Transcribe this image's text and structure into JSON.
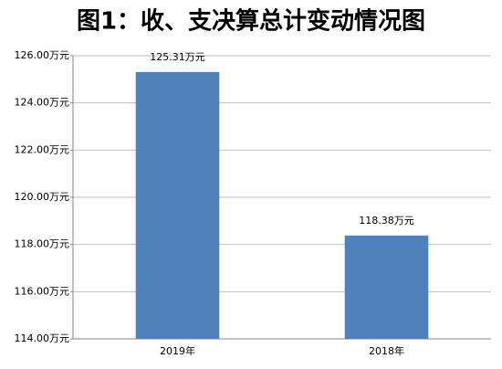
{
  "chart_data": {
    "type": "bar",
    "title": "图1：收、支决算总计变动情况图",
    "categories": [
      "2019年",
      "2018年"
    ],
    "values": [
      125.31,
      118.38
    ],
    "value_labels": [
      "125.31万元",
      "118.38万元"
    ],
    "color": "#4f81bd",
    "ylim": [
      114,
      126
    ],
    "yticks": [
      {
        "value": 114,
        "label": "114.00万元"
      },
      {
        "value": 116,
        "label": "116.00万元"
      },
      {
        "value": 118,
        "label": "118.00万元"
      },
      {
        "value": 120,
        "label": "120.00万元"
      },
      {
        "value": 122,
        "label": "122.00万元"
      },
      {
        "value": 124,
        "label": "124.00万元"
      },
      {
        "value": 126,
        "label": "126.00万元"
      }
    ],
    "grid": true
  }
}
